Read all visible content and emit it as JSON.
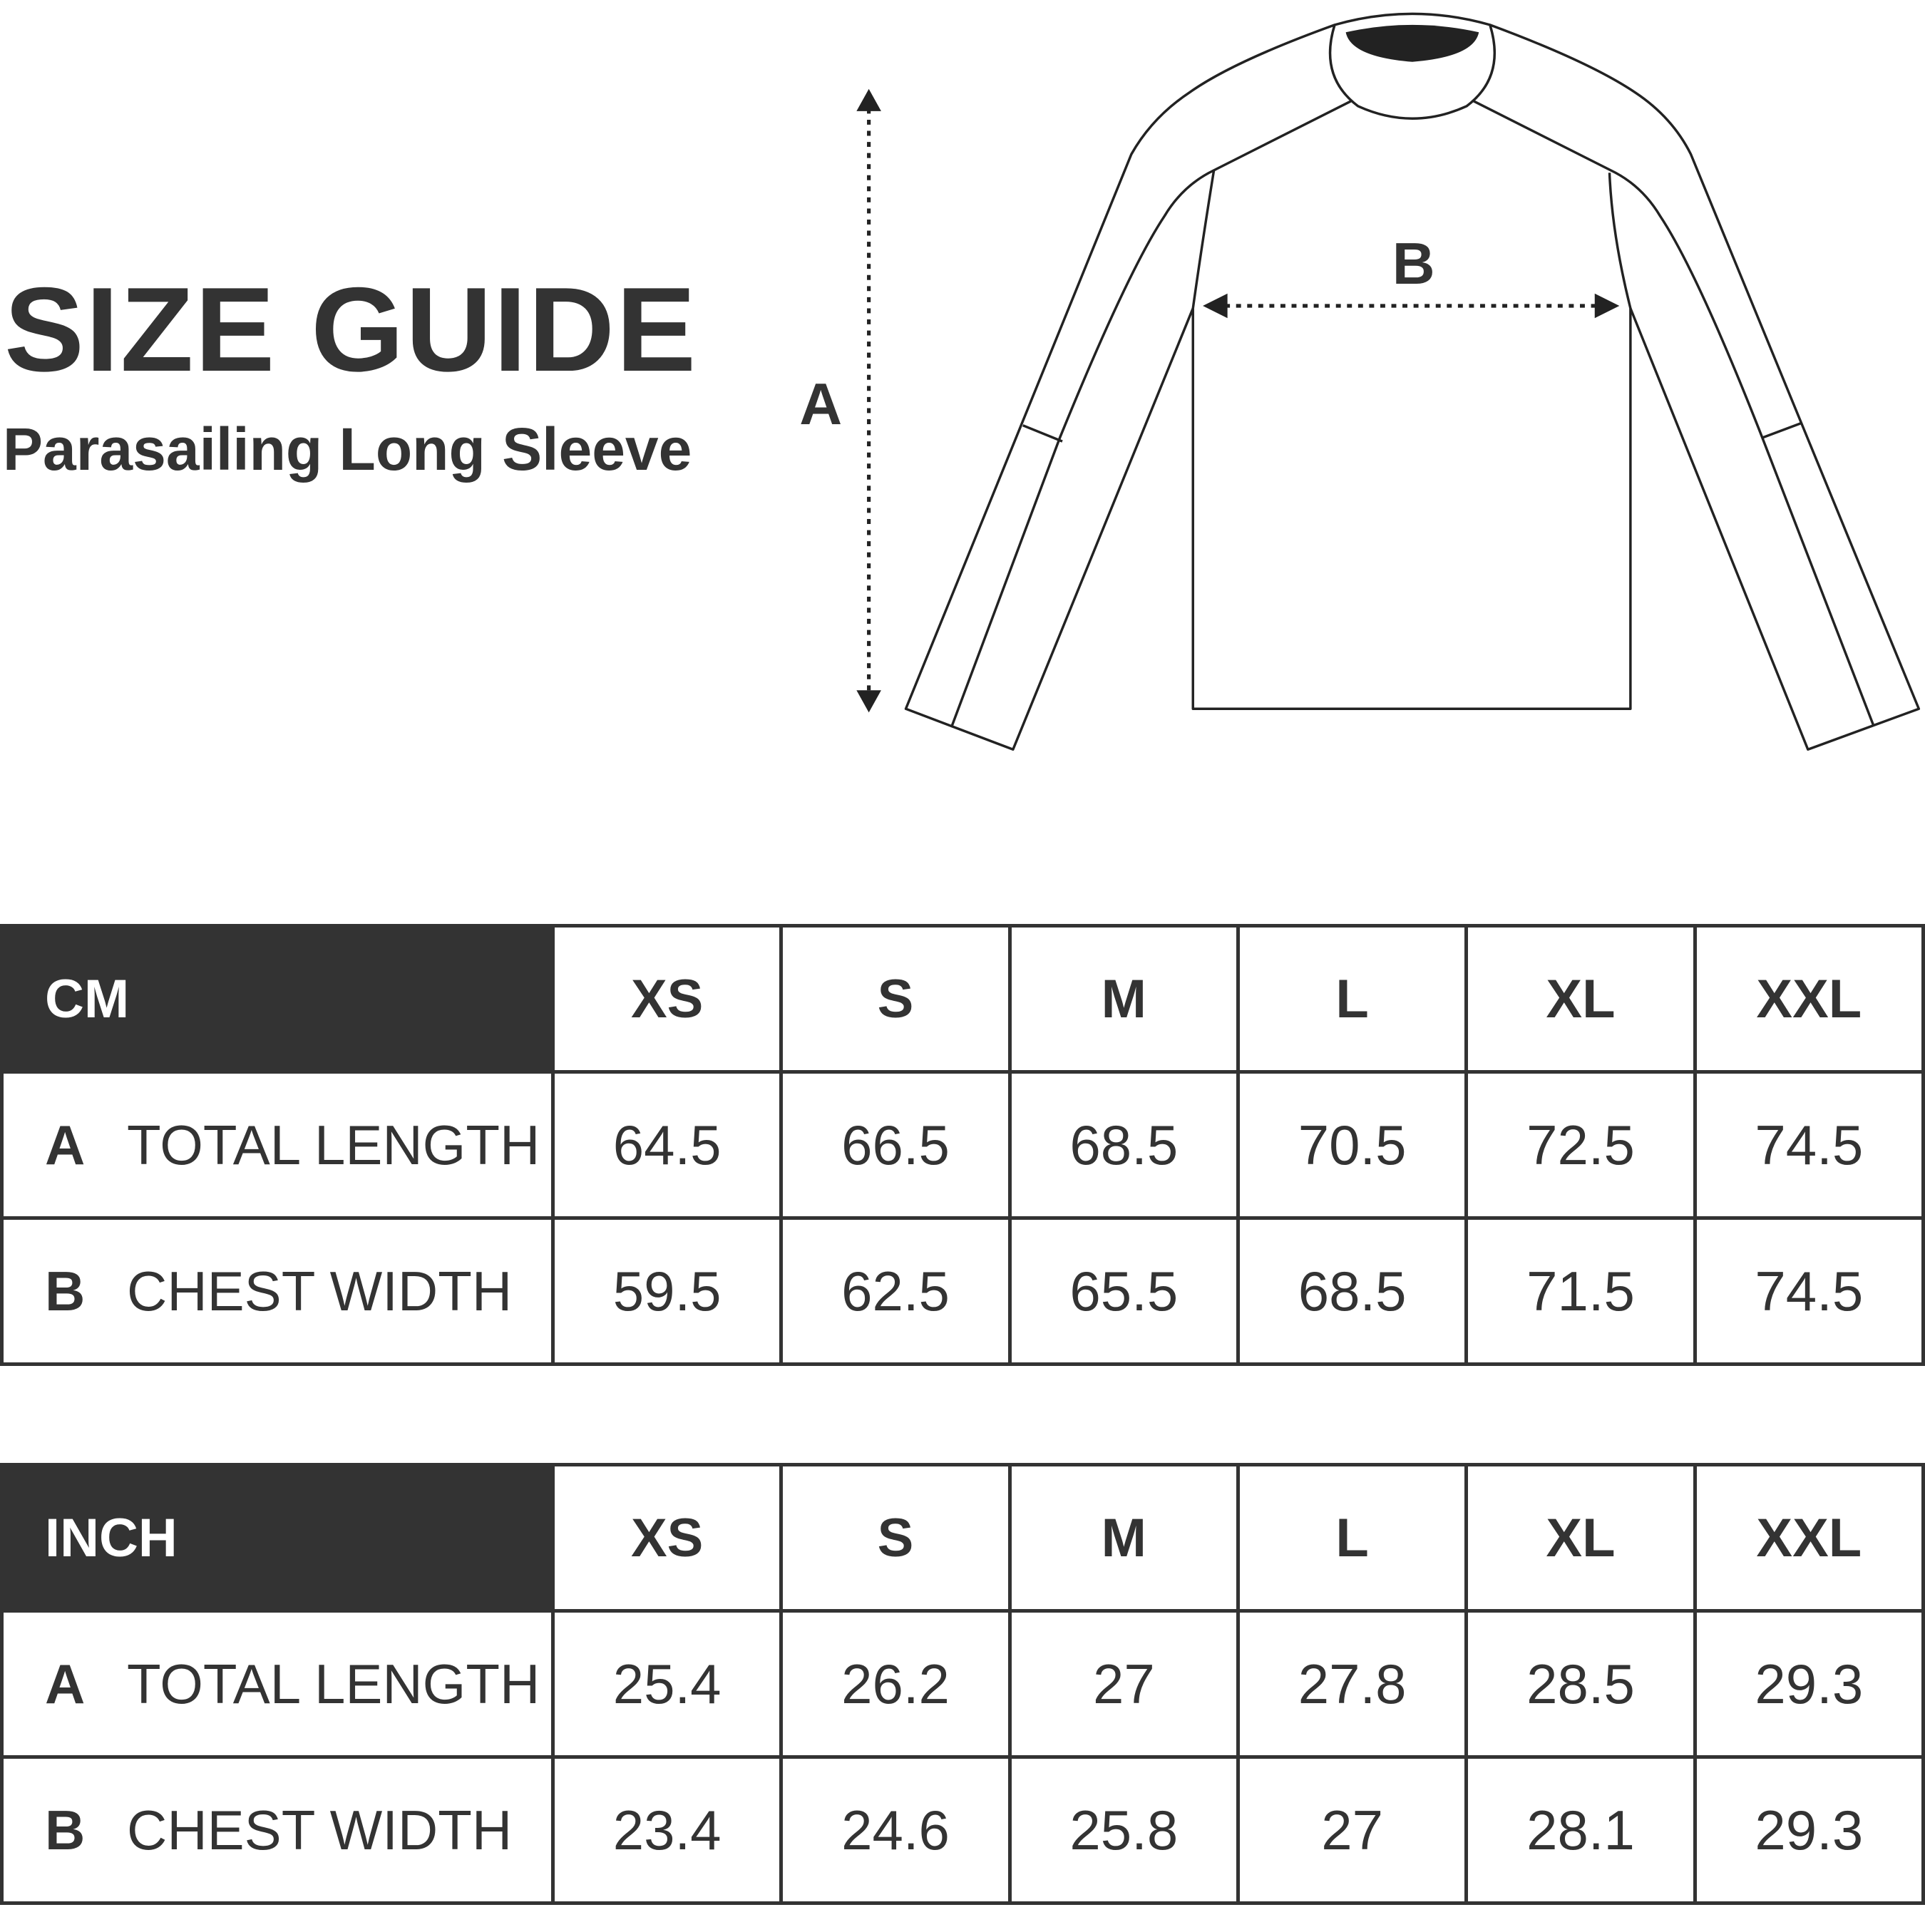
{
  "title": "SIZE GUIDE",
  "subtitle": "Parasailing Long Sleeve",
  "diagram": {
    "label_a": "A",
    "label_b": "B"
  },
  "sizes": [
    "XS",
    "S",
    "M",
    "L",
    "XL",
    "XXL"
  ],
  "tables": [
    {
      "unit": "CM",
      "rows": [
        {
          "letter": "A",
          "name": "TOTAL LENGTH",
          "values": [
            "64.5",
            "66.5",
            "68.5",
            "70.5",
            "72.5",
            "74.5"
          ]
        },
        {
          "letter": "B",
          "name": "CHEST WIDTH",
          "values": [
            "59.5",
            "62.5",
            "65.5",
            "68.5",
            "71.5",
            "74.5"
          ]
        }
      ]
    },
    {
      "unit": "INCH",
      "rows": [
        {
          "letter": "A",
          "name": "TOTAL LENGTH",
          "values": [
            "25.4",
            "26.2",
            "27",
            "27.8",
            "28.5",
            "29.3"
          ]
        },
        {
          "letter": "B",
          "name": "CHEST WIDTH",
          "values": [
            "23.4",
            "24.6",
            "25.8",
            "27",
            "28.1",
            "29.3"
          ]
        }
      ]
    }
  ],
  "colors": {
    "dark": "#333333",
    "background": "#ffffff"
  }
}
